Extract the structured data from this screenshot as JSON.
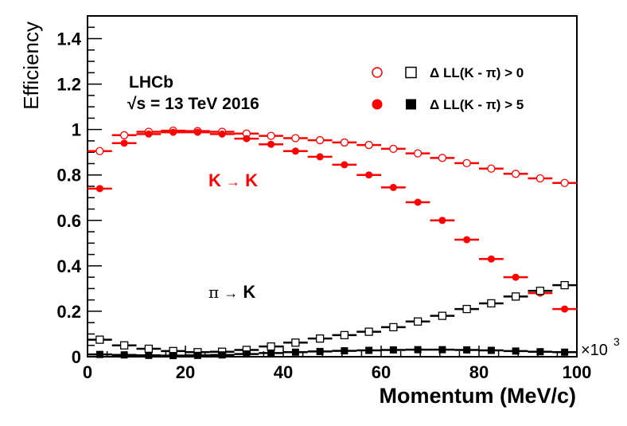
{
  "chart_data": {
    "type": "scatter",
    "ylabel": "Efficiency",
    "xlabel": "Momentum (MeV/c)",
    "x_multiplier": "×10",
    "x_multiplier_exp": "3",
    "xlim": [
      0,
      100
    ],
    "ylim": [
      0,
      1.5
    ],
    "x_ticks": [
      0,
      20,
      40,
      60,
      80,
      100
    ],
    "x_tick_labels": [
      "0",
      "20",
      "40",
      "60",
      "80",
      "100"
    ],
    "y_ticks": [
      0,
      0.2,
      0.4,
      0.6,
      0.8,
      1.0,
      1.2,
      1.4
    ],
    "y_tick_labels": [
      "0",
      "0.2",
      "0.4",
      "0.6",
      "0.8",
      "1",
      "1.2",
      "1.4"
    ],
    "experiment": "LHCb",
    "energy_label_sqrt": "√s",
    "energy_label_rest": " = 13 TeV 2016",
    "x": [
      2.5,
      7.5,
      12.5,
      17.5,
      22.5,
      27.5,
      32.5,
      37.5,
      42.5,
      47.5,
      52.5,
      57.5,
      62.5,
      67.5,
      72.5,
      77.5,
      82.5,
      87.5,
      92.5,
      97.5
    ],
    "x_bin_half_width": 2.5,
    "series": [
      {
        "name": "K→K, ΔLL(K - π) > 0",
        "marker": "open-circle",
        "color": "#ff0000",
        "values": [
          0.905,
          0.975,
          0.99,
          0.995,
          0.993,
          0.99,
          0.982,
          0.972,
          0.962,
          0.953,
          0.943,
          0.932,
          0.915,
          0.895,
          0.875,
          0.852,
          0.828,
          0.805,
          0.785,
          0.765
        ]
      },
      {
        "name": "K→K, ΔLL(K - π) > 5",
        "marker": "filled-circle",
        "color": "#ff0000",
        "values": [
          0.74,
          0.94,
          0.98,
          0.988,
          0.988,
          0.98,
          0.96,
          0.935,
          0.905,
          0.88,
          0.845,
          0.8,
          0.745,
          0.68,
          0.6,
          0.515,
          0.43,
          0.35,
          0.28,
          0.21
        ]
      },
      {
        "name": "π→K, ΔLL(K - π) > 0",
        "marker": "open-square",
        "color": "#000000",
        "values": [
          0.075,
          0.05,
          0.035,
          0.025,
          0.02,
          0.022,
          0.03,
          0.045,
          0.062,
          0.08,
          0.095,
          0.11,
          0.13,
          0.155,
          0.18,
          0.21,
          0.235,
          0.265,
          0.29,
          0.315
        ]
      },
      {
        "name": "π→K, ΔLL(K - π) > 5",
        "marker": "filled-square",
        "color": "#000000",
        "values": [
          0.01,
          0.008,
          0.006,
          0.005,
          0.006,
          0.008,
          0.012,
          0.016,
          0.02,
          0.023,
          0.026,
          0.028,
          0.03,
          0.031,
          0.031,
          0.03,
          0.028,
          0.025,
          0.022,
          0.02
        ]
      }
    ],
    "legend": {
      "placement": "top-right",
      "rows": [
        {
          "label": "Δ LL(K - π) > 0"
        },
        {
          "label": "Δ LL(K - π) > 5"
        }
      ]
    },
    "annotations": {
      "kk": {
        "from": "K",
        "arrow": "→",
        "to": "K",
        "color": "#ff0000"
      },
      "pik": {
        "from": "π",
        "arrow": "→",
        "to": "K",
        "color": "#000000"
      }
    }
  }
}
